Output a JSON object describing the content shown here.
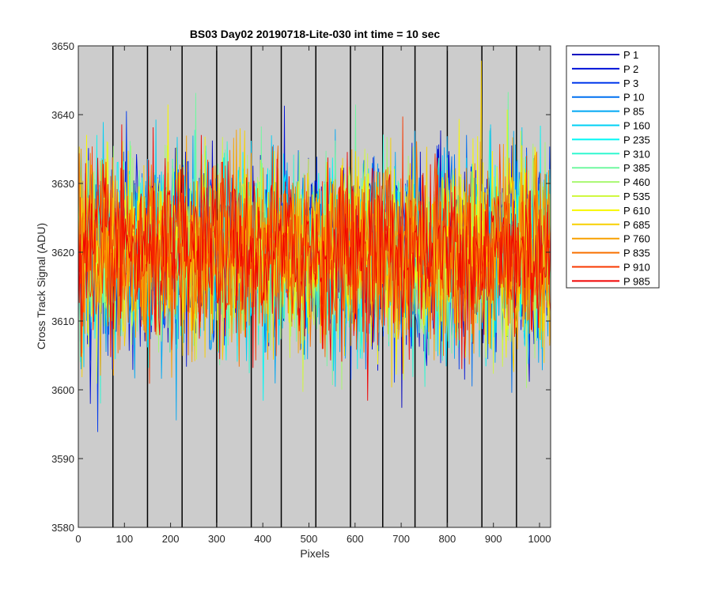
{
  "chart_data": {
    "type": "line",
    "title": "BS03 Day02 20190718-Lite-030 int time = 10 sec",
    "xlabel": "Pixels",
    "ylabel": "Cross Track Signal (ADU)",
    "xlim": [
      0,
      1024
    ],
    "ylim": [
      3580,
      3650
    ],
    "xticks": [
      0,
      100,
      200,
      300,
      400,
      500,
      600,
      700,
      800,
      900,
      1000
    ],
    "yticks": [
      3580,
      3590,
      3600,
      3610,
      3620,
      3630,
      3640,
      3650
    ],
    "plot_background": "#cccccc",
    "grid": false,
    "vertical_lines_x": [
      75,
      150,
      225,
      300,
      375,
      440,
      515,
      590,
      660,
      730,
      800,
      875,
      950
    ],
    "legend_position": "outside-right",
    "series_mean": 3620,
    "series_noise_sd": 6.5,
    "series": [
      {
        "name": "P 1",
        "color": "#0000c0"
      },
      {
        "name": "P 2",
        "color": "#0010d8"
      },
      {
        "name": "P 3",
        "color": "#0038ec"
      },
      {
        "name": "P 10",
        "color": "#0070f0"
      },
      {
        "name": "P 85",
        "color": "#00a8f4"
      },
      {
        "name": "P 160",
        "color": "#00d0f4"
      },
      {
        "name": "P 235",
        "color": "#00f8f4"
      },
      {
        "name": "P 310",
        "color": "#30f8d0"
      },
      {
        "name": "P 385",
        "color": "#70f8a0"
      },
      {
        "name": "P 460",
        "color": "#a8f870"
      },
      {
        "name": "P 535",
        "color": "#d0f840"
      },
      {
        "name": "P 610",
        "color": "#f8f800"
      },
      {
        "name": "P 685",
        "color": "#f8d000"
      },
      {
        "name": "P 760",
        "color": "#f8a000"
      },
      {
        "name": "P 835",
        "color": "#f87000"
      },
      {
        "name": "P 910",
        "color": "#f83800"
      },
      {
        "name": "P 985",
        "color": "#f00000"
      }
    ]
  }
}
